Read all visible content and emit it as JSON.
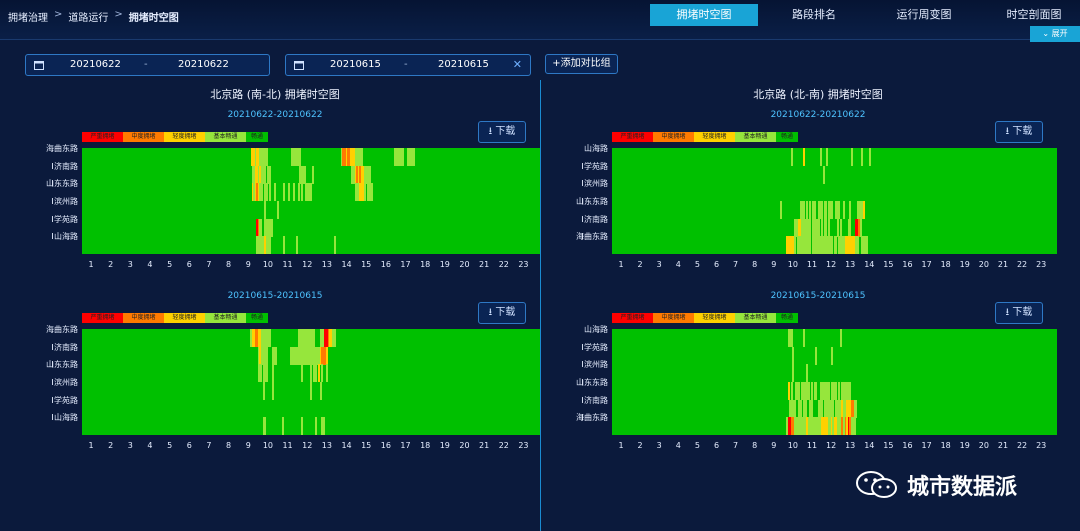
{
  "breadcrumb": [
    "拥堵治理",
    "道路运行",
    "拥堵时空图"
  ],
  "tabs": [
    {
      "label": "拥堵时空图",
      "active": true
    },
    {
      "label": "路段排名",
      "active": false
    },
    {
      "label": "运行周变图",
      "active": false
    },
    {
      "label": "时空剖面图",
      "active": false
    }
  ],
  "expand_label": "展开",
  "date_ranges": [
    {
      "start": "20210622",
      "sep": "-",
      "end": "20210622"
    },
    {
      "start": "20210615",
      "sep": "-",
      "end": "20210615"
    }
  ],
  "add_compare_label": "+添加对比组",
  "legend": [
    {
      "label": "严重拥堵",
      "color": "#ff0000"
    },
    {
      "label": "中度拥堵",
      "color": "#ff7a00"
    },
    {
      "label": "轻度拥堵",
      "color": "#ffd000"
    },
    {
      "label": "基本畅通",
      "color": "#96e63c"
    },
    {
      "label": "畅通",
      "color": "#00c000"
    }
  ],
  "download_label": "下载",
  "hours": [
    "1",
    "2",
    "3",
    "4",
    "5",
    "6",
    "7",
    "8",
    "9",
    "10",
    "11",
    "12",
    "13",
    "14",
    "15",
    "16",
    "17",
    "18",
    "19",
    "20",
    "21",
    "22",
    "23"
  ],
  "watermark": "城市数据派",
  "panels": [
    {
      "title": "北京路 (南-北) 拥堵时空图",
      "charts": [
        {
          "range": "20210622-20210622",
          "roads": [
            "海曲东路",
            "济南路",
            "山东东路",
            "滨州路",
            "学苑路",
            "山海路"
          ],
          "rows": [
            "0000000000000000000000000000000000000000000000000000000000000000000000000000000000000000000000000000000000002212211111000000000000000111111000000000000000000000000001332332221111100000000000000000000111111001111100000000000000000000000000000000000000000000000000000000000000000000000000000000",
            "0000000000000000000000000000000000000000000000000000000000000000000000000000000000000000000000000000000000011221211101100000000000000000011110000100000000000000000000000011232322111100000000000000000000000000000000000000000000000000000000000000000000000000000000000000000000000000000000000",
            "0000000000000000000000000000000000000000000000000000000000000000000000000000000000000000000000000000000000021232110110100100000100100100101001111000000000000000000000000000111222101110000000000000000000000000000000000000000000000000000000000000000000000000000000000000000000000000000000000",
            "0000000000000000000000000000000000000000000000000000000000000000000000000000000000000000000000000000000000000000000100000001000000000000000000000000000000000000000000000000000000000000000000000000000000000000000000000000000000000000000000000000000000000000000000000000000000000000000000000",
            "0000000000000000000000000000000000000000000000000000000000000000000000000000000000000000000000000000000000000043100111110000000000000000000000000000000000000000000000000000000000000000000000000000000000000000000000000000000000000000000000000000000000000000000000000000000000000000000000000",
            "0000000000000000000000000000000000000000000000000000000000000000000000000000000000000000000000000000000000000011111211100000000100000001000000000000000000000001000000000000000000000000000000000000000000000000000000000000000000000000000000000000000000000000000000000000000000000000000000000"
          ]
        },
        {
          "range": "20210615-20210615",
          "roads": [
            "海曲东路",
            "济南路",
            "山东东路",
            "滨州路",
            "学苑路",
            "山海路"
          ],
          "rows": [
            "0000000000000000000000000000000000000000000000000000000000000000000000000000000000000000000000000000000000122332211111100000000000000000111111111110001114432211000000000000000000000000000000000000000000000000000000000000000000000000000000000000000000000000000000000000000000000000000000000",
            "0000000000000000000000000000000000000000000000000000000000000000000000000000000000000000000000000000000000000001211110001110000000011111111111111111112333200000000000000000000000000000000000000000000000000000000000000000000000000000000000000000000000000000000000000000000000000000000000000",
            "0000000000000000000000000000000000000000000000000000000000000000000000000000000000000000000000000000000000000001101110001000000000000000001000001011020100100000000000000000000000000000000000000000000000000000000000000000000000000000000000000000000000000000000000000000000000000000000000000",
            "0000000000000000000000000000000000000000000000000000000000000000000000000000000000000000000000000000000000000000001000001000000000000000000000001000001000000000000000000000000000000000000000000000000000000000000000000000000000000000000000000000000000000000000000000000000000000000000000000",
            "0000000000000000000000000000000000000000000000000000000000000000000000000000000000000000000000000000000000000000000000000000000000000000000000000000000000000000000000000000000000000000000000000000000000000000000000000000000000000000000000000000000000000000000000000000000000000000000000000",
            "0000000000000000000000000000000000000000000000000000000000000000000000000000000000000000000000000000000000000000001100000000001000000000001000000001000110000000000000000000000000000000000000000000000000000000000000000000000000000000000000000000000000000000000000000000000000000000000000000"
          ]
        }
      ]
    },
    {
      "title": "北京路 (北-南) 拥堵时空图",
      "charts": [
        {
          "range": "20210622-20210622",
          "roads": [
            "山海路",
            "学苑路",
            "滨州路",
            "山东东路",
            "济南路",
            "海曲东路"
          ],
          "rows": [
            "0000000000000000000000000000000000000000000000000000000000000000000000000000000000000000000000000000000000000000000010000000200000000001000100000000000000010000001000010000000000000000000000000000000000000000000000000000000000000000000000000000000000000000000000000000000000000000000000000",
            "0000000000000000000000000000000000000000000000000000000000000000000000000000000000000000000000000000000000000000000000000000000000000000010000000000000000000000000000000000000000000000000000000000000000000000000000000000000000000000000000000000000000000000000000000000000000000000000000000",
            "0000000000000000000000000000000000000000000000000000000000000000000000000000000000000000000000000000000000000000000000000000000000000000000000000000000000000000000000000000000000000000000000000000000000000000000000000000000000000000000000000000000000000000000000000000000000000000000000000",
            "0000000000000000000000000000000000000000000000000000000000000000000000000000000000000000000000000000000000000100000000000011101010110011101011100111001000100001111200000000000000000000000000000000000000000000000000000000000000000000000000000000000000000000000000000000000000000000000000000",
            "0000000000000000000000000000000000000000000000000000000000000000000000000000000000000000000000000000000000000000000000111221111110111110101010000010100001100044310000000000000000000000000000000000000000000000000000000000000000000000000000000000000000000000000000000000000000000000000000000",
            "0000000000000000000000000000000000000000000000000000000000000000000000000000000000000000000000000000000000000000022222101111111110111111111111101101111222222211001111000000000000000000000000000000000000000000000000000000000000000000000000000000000000000000000000000000000000000000000000000"
          ]
        },
        {
          "range": "20210615-20210615",
          "roads": [
            "山海路",
            "学苑路",
            "滨州路",
            "山东东路",
            "济南路",
            "海曲东路"
          ],
          "rows": [
            "0000000000000000000000000000000000000000000000000000000000000000000000000000000000000000000000000000000000000000001110000000100000000000000000000000100000000000000000000000000000000000000000000000000000000000000000000000000000000000000000000000000000000000000000000000000000000000000000000",
            "0000000000000000000000000000000000000000000000000000000000000000000000000000000000000000000000000000000000000000000001000000000000001000000000100000000000000000000000000000000000000000000000000000000000000000000000000000000000000000000000000000000000000000000000000000000000000000000000000",
            "0000000000000000000000000000000000000000000000000000000000000000000000000000000000000000000000000000000000000000000001000000001000000000000000000000000000000000000000000000000000000000000000000000000000000000000000000000000000000000000000000000000000000000000000000000000000000000000000000",
            "0000000000000000000000000000000000000000000000000000000000000000000000000000000000000000000000000000000000000000002010011101111101011001111110111101011111100000000000000000000000000000000000000000000000000000000000000000000000000000000000000000000000000000000000000000000000000000000000000",
            "0000000000000000000000000000000000000000000000000000000000000000000000000000000000000000000000000000000000000000000111100110110011000011101111110111121122233110000000000000000000000000000000000000000000000000000000000000000000000000000000000000000000000000000000000000000000000000000000000",
            "0000000000000000000000000000000000000000000000000000000000000000000000000000000000000000000000000000000000000000014433111111112111111111222211212211131324311100000000000000000000000000000000000000000000000000000000000000000000000000000000000000000000000000000000000000000000000000000000000"
          ]
        }
      ]
    }
  ]
}
